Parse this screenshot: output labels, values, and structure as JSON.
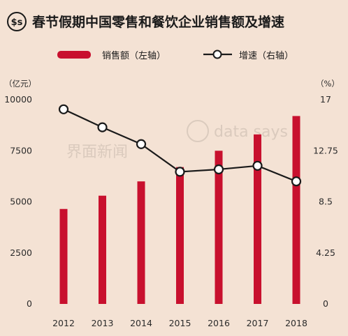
{
  "header": {
    "title": "春节假期中国零售和餐饮企业销售额及增速",
    "logo_text": "$s"
  },
  "watermark": {
    "left": "界面新闻",
    "right": "data says"
  },
  "colors": {
    "background": "#f4e2d4",
    "bar": "#c8102e",
    "line": "#1a1a1a",
    "marker_fill": "#ffffff",
    "title_bar": "#c8102e"
  },
  "chart_data": {
    "type": "bar",
    "title": "春节假期中国零售和餐饮企业销售额及增速",
    "categories": [
      "2012",
      "2013",
      "2014",
      "2015",
      "2016",
      "2017",
      "2018"
    ],
    "series": [
      {
        "name": "销售额（左轴）",
        "type": "bar",
        "axis": "left",
        "values": [
          4650,
          5300,
          6000,
          6700,
          7500,
          8300,
          9200
        ]
      },
      {
        "name": "增速（右轴）",
        "type": "line",
        "axis": "right",
        "values": [
          16.2,
          14.7,
          13.3,
          11.0,
          11.2,
          11.5,
          10.2
        ]
      }
    ],
    "y_left": {
      "unit": "（亿元）",
      "ylim": [
        0,
        10000
      ],
      "ticks": [
        "0",
        "2500",
        "5000",
        "7500",
        "10000"
      ]
    },
    "y_right": {
      "unit": "（%）",
      "ylim": [
        0,
        17
      ],
      "ticks": [
        "0",
        "4.25",
        "8.5",
        "12.75",
        "17"
      ]
    },
    "legend_position": "top",
    "grid": false
  }
}
